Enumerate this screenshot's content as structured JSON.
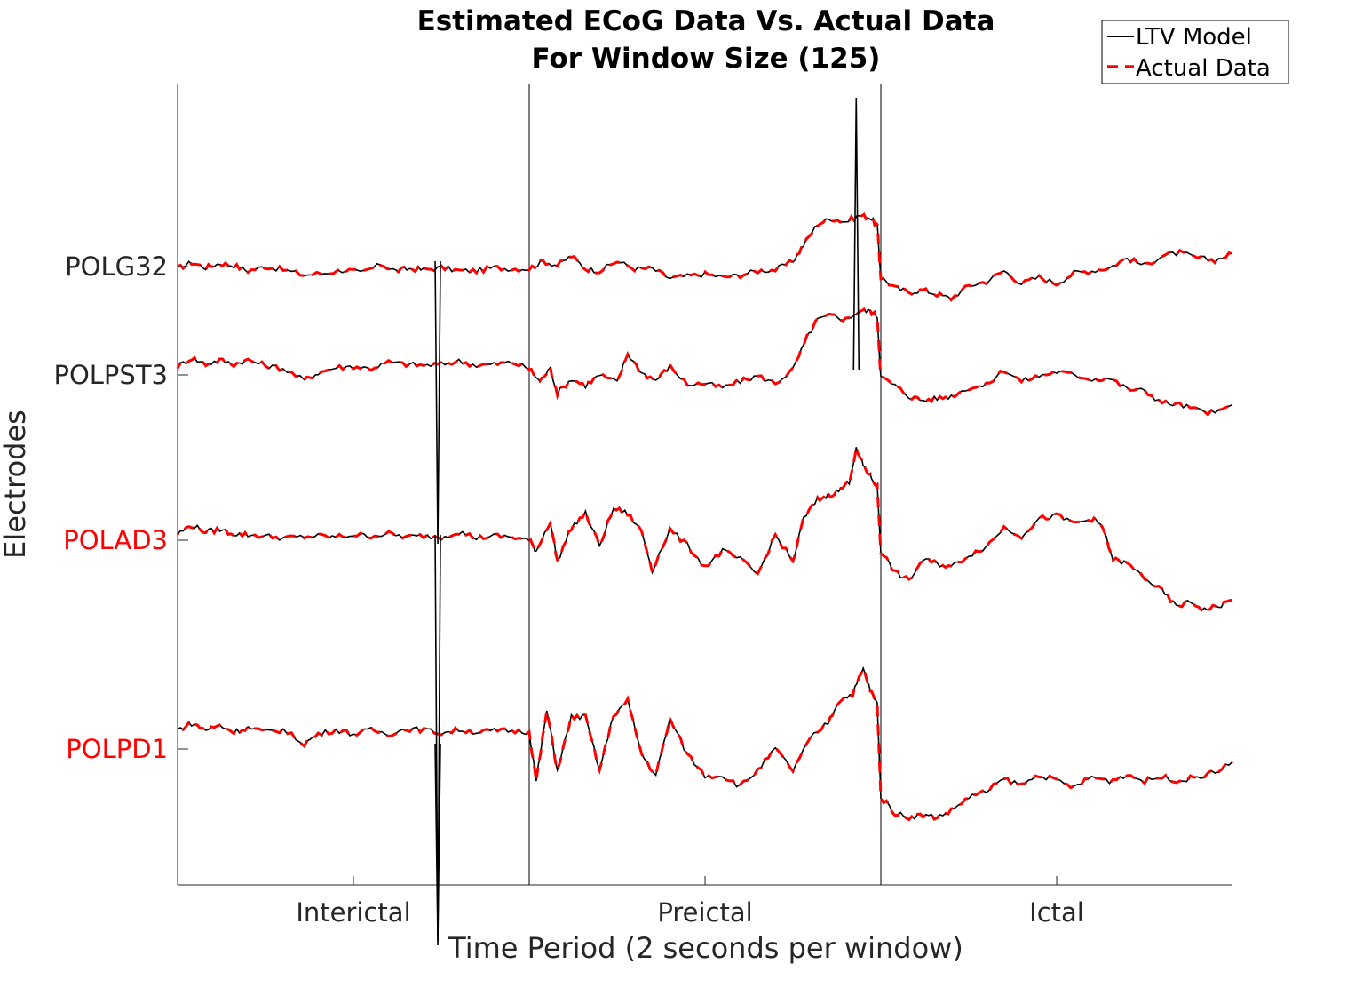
{
  "chart_data": {
    "type": "line",
    "title": [
      "Estimated ECoG Data Vs. Actual Data",
      "For Window Size (125)"
    ],
    "xlabel": "Time Period (2 seconds per window)",
    "ylabel": "Electrodes",
    "x_ticks": [
      "Interictal",
      "Preictal",
      "Ictal"
    ],
    "y_ticks": [
      {
        "label": "POLG32",
        "color": "#262626"
      },
      {
        "label": "POLPST3",
        "color": "#262626"
      },
      {
        "label": "POLAD3",
        "color": "#ff0000"
      },
      {
        "label": "POLPD1",
        "color": "#ff0000"
      }
    ],
    "xlim": [
      0,
      3
    ],
    "period_boundaries": [
      1,
      2
    ],
    "grid": false,
    "legend_position": "top-right",
    "series": [
      {
        "name": "LTV Model",
        "color": "#000000",
        "style": "solid"
      },
      {
        "name": "Actual Data",
        "color": "#ff0000",
        "style": "dashed"
      }
    ],
    "traces": [
      {
        "electrode": "POLG32",
        "points": [
          [
            0.0,
            -0.02
          ],
          [
            0.04,
            0.04
          ],
          [
            0.08,
            -0.01
          ],
          [
            0.12,
            0.03
          ],
          [
            0.16,
            0.01
          ],
          [
            0.2,
            -0.04
          ],
          [
            0.25,
            0.0
          ],
          [
            0.3,
            -0.03
          ],
          [
            0.36,
            -0.08
          ],
          [
            0.42,
            -0.06
          ],
          [
            0.48,
            -0.03
          ],
          [
            0.52,
            -0.06
          ],
          [
            0.58,
            0.02
          ],
          [
            0.62,
            -0.04
          ],
          [
            0.66,
            -0.02
          ],
          [
            0.7,
            -0.03
          ],
          [
            0.75,
            -0.01
          ],
          [
            0.8,
            -0.04
          ],
          [
            0.85,
            -0.04
          ],
          [
            0.9,
            -0.01
          ],
          [
            0.95,
            -0.02
          ],
          [
            1.0,
            -0.02
          ],
          [
            1.04,
            0.05
          ],
          [
            1.08,
            0.01
          ],
          [
            1.12,
            0.1
          ],
          [
            1.16,
            -0.02
          ],
          [
            1.2,
            -0.04
          ],
          [
            1.25,
            0.05
          ],
          [
            1.3,
            -0.02
          ],
          [
            1.35,
            -0.02
          ],
          [
            1.4,
            -0.11
          ],
          [
            1.45,
            -0.09
          ],
          [
            1.5,
            -0.07
          ],
          [
            1.55,
            -0.1
          ],
          [
            1.6,
            -0.08
          ],
          [
            1.65,
            -0.04
          ],
          [
            1.7,
            -0.03
          ],
          [
            1.75,
            0.05
          ],
          [
            1.78,
            0.2
          ],
          [
            1.82,
            0.4
          ],
          [
            1.86,
            0.45
          ],
          [
            1.9,
            0.42
          ],
          [
            1.94,
            0.48
          ],
          [
            1.97,
            0.46
          ],
          [
            1.99,
            0.38
          ],
          [
            2.0,
            -0.1
          ],
          [
            2.04,
            -0.2
          ],
          [
            2.08,
            -0.24
          ],
          [
            2.12,
            -0.22
          ],
          [
            2.16,
            -0.26
          ],
          [
            2.2,
            -0.3
          ],
          [
            2.25,
            -0.18
          ],
          [
            2.3,
            -0.14
          ],
          [
            2.35,
            -0.04
          ],
          [
            2.4,
            -0.16
          ],
          [
            2.45,
            -0.1
          ],
          [
            2.5,
            -0.16
          ],
          [
            2.55,
            -0.06
          ],
          [
            2.6,
            -0.04
          ],
          [
            2.65,
            -0.01
          ],
          [
            2.7,
            0.08
          ],
          [
            2.75,
            0.01
          ],
          [
            2.8,
            0.1
          ],
          [
            2.85,
            0.13
          ],
          [
            2.9,
            0.08
          ],
          [
            2.95,
            0.06
          ],
          [
            3.0,
            0.12
          ]
        ]
      },
      {
        "electrode": "POLPST3",
        "points": [
          [
            0.0,
            0.08
          ],
          [
            0.04,
            0.16
          ],
          [
            0.08,
            0.1
          ],
          [
            0.12,
            0.14
          ],
          [
            0.16,
            0.1
          ],
          [
            0.2,
            0.14
          ],
          [
            0.25,
            0.09
          ],
          [
            0.3,
            0.06
          ],
          [
            0.36,
            -0.05
          ],
          [
            0.4,
            0.02
          ],
          [
            0.45,
            0.07
          ],
          [
            0.5,
            0.08
          ],
          [
            0.55,
            0.06
          ],
          [
            0.6,
            0.12
          ],
          [
            0.65,
            0.1
          ],
          [
            0.7,
            0.09
          ],
          [
            0.75,
            0.1
          ],
          [
            0.8,
            0.13
          ],
          [
            0.85,
            0.09
          ],
          [
            0.9,
            0.1
          ],
          [
            0.95,
            0.12
          ],
          [
            1.0,
            0.06
          ],
          [
            1.03,
            -0.06
          ],
          [
            1.06,
            0.06
          ],
          [
            1.08,
            -0.17
          ],
          [
            1.12,
            -0.04
          ],
          [
            1.16,
            -0.1
          ],
          [
            1.2,
            0.0
          ],
          [
            1.25,
            -0.07
          ],
          [
            1.28,
            0.2
          ],
          [
            1.32,
            0.02
          ],
          [
            1.36,
            -0.05
          ],
          [
            1.4,
            0.08
          ],
          [
            1.45,
            -0.09
          ],
          [
            1.5,
            -0.08
          ],
          [
            1.55,
            -0.12
          ],
          [
            1.6,
            -0.06
          ],
          [
            1.65,
            -0.01
          ],
          [
            1.7,
            -0.08
          ],
          [
            1.75,
            0.05
          ],
          [
            1.79,
            0.35
          ],
          [
            1.82,
            0.52
          ],
          [
            1.86,
            0.56
          ],
          [
            1.9,
            0.52
          ],
          [
            1.94,
            0.6
          ],
          [
            1.97,
            0.6
          ],
          [
            1.99,
            0.55
          ],
          [
            2.0,
            -0.02
          ],
          [
            2.04,
            -0.1
          ],
          [
            2.08,
            -0.2
          ],
          [
            2.12,
            -0.24
          ],
          [
            2.16,
            -0.22
          ],
          [
            2.2,
            -0.2
          ],
          [
            2.25,
            -0.12
          ],
          [
            2.3,
            -0.1
          ],
          [
            2.35,
            0.05
          ],
          [
            2.4,
            -0.06
          ],
          [
            2.45,
            -0.01
          ],
          [
            2.5,
            0.03
          ],
          [
            2.55,
            0.0
          ],
          [
            2.6,
            -0.04
          ],
          [
            2.65,
            -0.03
          ],
          [
            2.7,
            -0.13
          ],
          [
            2.75,
            -0.15
          ],
          [
            2.8,
            -0.26
          ],
          [
            2.85,
            -0.28
          ],
          [
            2.9,
            -0.33
          ],
          [
            2.95,
            -0.36
          ],
          [
            3.0,
            -0.28
          ]
        ]
      },
      {
        "electrode": "POLAD3",
        "points": [
          [
            0.0,
            0.06
          ],
          [
            0.04,
            0.14
          ],
          [
            0.08,
            0.08
          ],
          [
            0.12,
            0.1
          ],
          [
            0.16,
            0.06
          ],
          [
            0.2,
            0.05
          ],
          [
            0.25,
            0.04
          ],
          [
            0.3,
            0.02
          ],
          [
            0.35,
            0.03
          ],
          [
            0.4,
            0.04
          ],
          [
            0.45,
            0.03
          ],
          [
            0.5,
            0.05
          ],
          [
            0.55,
            0.04
          ],
          [
            0.6,
            0.06
          ],
          [
            0.65,
            0.03
          ],
          [
            0.7,
            0.04
          ],
          [
            0.75,
            0.03
          ],
          [
            0.8,
            0.08
          ],
          [
            0.85,
            0.02
          ],
          [
            0.9,
            0.04
          ],
          [
            0.95,
            0.03
          ],
          [
            1.0,
            0.0
          ],
          [
            1.02,
            -0.1
          ],
          [
            1.06,
            0.18
          ],
          [
            1.08,
            -0.2
          ],
          [
            1.12,
            0.12
          ],
          [
            1.16,
            0.25
          ],
          [
            1.2,
            -0.05
          ],
          [
            1.24,
            0.3
          ],
          [
            1.28,
            0.25
          ],
          [
            1.32,
            0.08
          ],
          [
            1.35,
            -0.28
          ],
          [
            1.4,
            0.1
          ],
          [
            1.45,
            -0.05
          ],
          [
            1.5,
            -0.25
          ],
          [
            1.55,
            -0.1
          ],
          [
            1.6,
            -0.18
          ],
          [
            1.65,
            -0.32
          ],
          [
            1.7,
            0.05
          ],
          [
            1.75,
            -0.2
          ],
          [
            1.78,
            0.2
          ],
          [
            1.82,
            0.38
          ],
          [
            1.85,
            0.42
          ],
          [
            1.88,
            0.46
          ],
          [
            1.91,
            0.55
          ],
          [
            1.93,
            0.85
          ],
          [
            1.95,
            0.7
          ],
          [
            1.97,
            0.6
          ],
          [
            1.99,
            0.5
          ],
          [
            2.0,
            -0.1
          ],
          [
            2.04,
            -0.3
          ],
          [
            2.08,
            -0.38
          ],
          [
            2.12,
            -0.18
          ],
          [
            2.16,
            -0.22
          ],
          [
            2.2,
            -0.25
          ],
          [
            2.25,
            -0.14
          ],
          [
            2.3,
            -0.06
          ],
          [
            2.35,
            0.12
          ],
          [
            2.4,
            0.04
          ],
          [
            2.45,
            0.2
          ],
          [
            2.5,
            0.23
          ],
          [
            2.55,
            0.16
          ],
          [
            2.6,
            0.2
          ],
          [
            2.63,
            0.13
          ],
          [
            2.66,
            -0.18
          ],
          [
            2.7,
            -0.22
          ],
          [
            2.75,
            -0.35
          ],
          [
            2.8,
            -0.48
          ],
          [
            2.84,
            -0.62
          ],
          [
            2.88,
            -0.58
          ],
          [
            2.92,
            -0.65
          ],
          [
            2.96,
            -0.62
          ],
          [
            3.0,
            -0.56
          ]
        ]
      },
      {
        "electrode": "POLPD1",
        "points": [
          [
            0.0,
            0.18
          ],
          [
            0.04,
            0.24
          ],
          [
            0.08,
            0.18
          ],
          [
            0.12,
            0.22
          ],
          [
            0.16,
            0.16
          ],
          [
            0.2,
            0.2
          ],
          [
            0.25,
            0.16
          ],
          [
            0.3,
            0.18
          ],
          [
            0.36,
            0.05
          ],
          [
            0.4,
            0.14
          ],
          [
            0.45,
            0.18
          ],
          [
            0.5,
            0.14
          ],
          [
            0.55,
            0.18
          ],
          [
            0.6,
            0.14
          ],
          [
            0.65,
            0.19
          ],
          [
            0.7,
            0.18
          ],
          [
            0.75,
            0.15
          ],
          [
            0.8,
            0.18
          ],
          [
            0.85,
            0.16
          ],
          [
            0.9,
            0.17
          ],
          [
            0.95,
            0.17
          ],
          [
            1.0,
            0.16
          ],
          [
            1.02,
            -0.3
          ],
          [
            1.05,
            0.36
          ],
          [
            1.08,
            -0.2
          ],
          [
            1.12,
            0.3
          ],
          [
            1.16,
            0.3
          ],
          [
            1.2,
            -0.2
          ],
          [
            1.24,
            0.32
          ],
          [
            1.28,
            0.45
          ],
          [
            1.32,
            -0.05
          ],
          [
            1.36,
            -0.25
          ],
          [
            1.4,
            0.28
          ],
          [
            1.45,
            -0.05
          ],
          [
            1.5,
            -0.25
          ],
          [
            1.55,
            -0.25
          ],
          [
            1.6,
            -0.35
          ],
          [
            1.65,
            -0.2
          ],
          [
            1.7,
            0.0
          ],
          [
            1.75,
            -0.2
          ],
          [
            1.8,
            0.1
          ],
          [
            1.85,
            0.25
          ],
          [
            1.88,
            0.45
          ],
          [
            1.92,
            0.52
          ],
          [
            1.95,
            0.75
          ],
          [
            1.97,
            0.55
          ],
          [
            1.99,
            0.42
          ],
          [
            2.0,
            -0.45
          ],
          [
            2.04,
            -0.6
          ],
          [
            2.08,
            -0.64
          ],
          [
            2.12,
            -0.62
          ],
          [
            2.16,
            -0.64
          ],
          [
            2.2,
            -0.58
          ],
          [
            2.25,
            -0.45
          ],
          [
            2.3,
            -0.4
          ],
          [
            2.35,
            -0.28
          ],
          [
            2.4,
            -0.34
          ],
          [
            2.45,
            -0.24
          ],
          [
            2.5,
            -0.3
          ],
          [
            2.55,
            -0.36
          ],
          [
            2.6,
            -0.26
          ],
          [
            2.65,
            -0.3
          ],
          [
            2.7,
            -0.24
          ],
          [
            2.75,
            -0.3
          ],
          [
            2.8,
            -0.26
          ],
          [
            2.85,
            -0.3
          ],
          [
            2.9,
            -0.26
          ],
          [
            2.95,
            -0.22
          ],
          [
            3.0,
            -0.12
          ]
        ]
      }
    ],
    "artifacts": [
      {
        "trace": "POLG32",
        "x": 0.74,
        "y": -2.6
      },
      {
        "trace": "POLPST3",
        "x": 1.93,
        "y": 2.6
      },
      {
        "trace": "POLAD3",
        "x": 0.74,
        "y": -3.8
      },
      {
        "trace": "POLPD1",
        "x": 0.74,
        "y": -1.8
      }
    ]
  }
}
